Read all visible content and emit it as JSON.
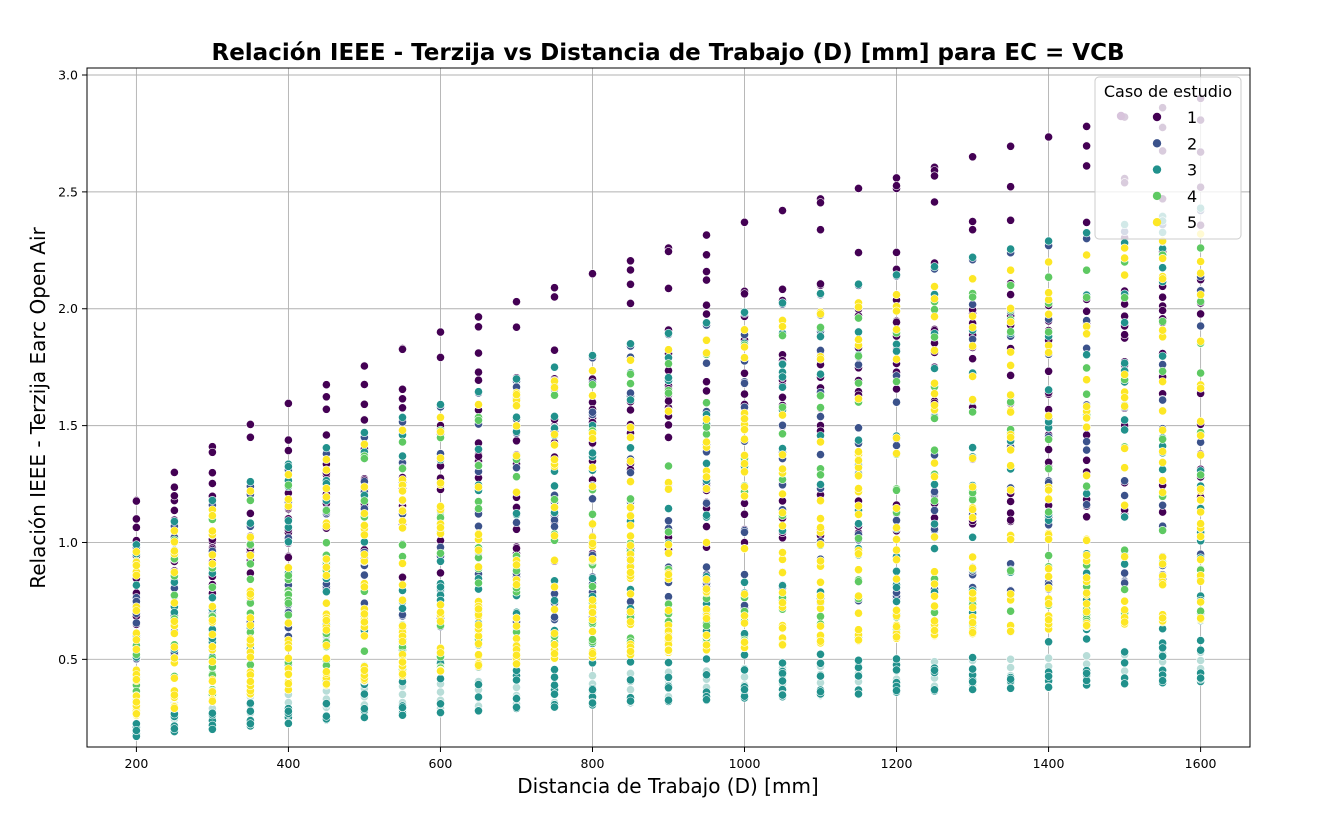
{
  "chart_data": {
    "type": "scatter",
    "title": "Relación IEEE - Terzija vs Distancia de Trabajo (D) [mm] para EC = VCB",
    "xlabel": "Distancia de Trabajo (D) [mm]",
    "ylabel": "Relación IEEE - Terzija Earc Open Air",
    "xlim": [
      135,
      1665
    ],
    "ylim": [
      0.125,
      3.03
    ],
    "x_ticks": [
      200,
      400,
      600,
      800,
      1000,
      1200,
      1400,
      1600
    ],
    "x_tick_labels": [
      "200",
      "400",
      "600",
      "800",
      "1000",
      "1200",
      "1400",
      "1600"
    ],
    "y_ticks": [
      0.5,
      1.0,
      1.5,
      2.0,
      2.5,
      3.0
    ],
    "y_tick_labels": [
      "0.5",
      "1.0",
      "1.5",
      "2.0",
      "2.5",
      "3.0"
    ],
    "grid": true,
    "legend": {
      "title": "Caso de estudio",
      "placement": "top-right",
      "entries": [
        "1",
        "2",
        "3",
        "4",
        "5"
      ]
    },
    "colors": {
      "1": "#440154",
      "2": "#3b528b",
      "3": "#21918c",
      "4": "#5ec962",
      "5": "#fde725",
      "grid": "#b0b0b0",
      "light_cyan": "#b8ddd8",
      "light_purple": "#d8c4dc"
    },
    "x_values": [
      200,
      250,
      300,
      350,
      400,
      450,
      500,
      550,
      600,
      650,
      700,
      750,
      800,
      850,
      900,
      950,
      1000,
      1050,
      1100,
      1150,
      1200,
      1250,
      1300,
      1350,
      1400,
      1450,
      1500,
      1550,
      1600
    ],
    "series": [
      {
        "name": "1",
        "upper_envelope": [
          1.18,
          1.3,
          1.41,
          1.505,
          1.595,
          1.675,
          1.755,
          1.83,
          1.9,
          1.965,
          2.03,
          2.09,
          2.15,
          2.205,
          2.26,
          2.315,
          2.37,
          2.42,
          2.47,
          2.515,
          2.56,
          2.605,
          2.65,
          2.695,
          2.735,
          2.78,
          2.82,
          2.86,
          2.9
        ],
        "lower_envelope": [
          0.65,
          0.69,
          0.72,
          0.74,
          0.78,
          0.8,
          0.82,
          0.85,
          0.87,
          0.89,
          0.9,
          0.92,
          0.94,
          0.96,
          0.97,
          0.98,
          1.0,
          1.02,
          1.03,
          1.04,
          1.05,
          1.07,
          1.08,
          1.09,
          1.1,
          1.11,
          1.12,
          1.13,
          1.14
        ]
      },
      {
        "name": "2",
        "upper_envelope": [
          0.98,
          1.07,
          1.16,
          1.24,
          1.31,
          1.38,
          1.45,
          1.52,
          1.58,
          1.64,
          1.69,
          1.75,
          1.79,
          1.84,
          1.89,
          1.93,
          1.98,
          2.02,
          2.06,
          2.1,
          2.14,
          2.17,
          2.21,
          2.24,
          2.27,
          2.3,
          2.33,
          2.36,
          2.42
        ],
        "lower_envelope": [
          0.5,
          0.52,
          0.54,
          0.56,
          0.58,
          0.6,
          0.62,
          0.63,
          0.64,
          0.65,
          0.66,
          0.67,
          0.68,
          0.69,
          0.7,
          0.71,
          0.72,
          0.73,
          0.74,
          0.75,
          0.76,
          0.77,
          0.78,
          0.79,
          0.8,
          0.81,
          0.82,
          0.83,
          0.84
        ]
      },
      {
        "name": "3",
        "upper_envelope": [
          0.99,
          1.09,
          1.18,
          1.26,
          1.335,
          1.405,
          1.47,
          1.535,
          1.59,
          1.645,
          1.7,
          1.75,
          1.8,
          1.85,
          1.895,
          1.94,
          1.985,
          2.025,
          2.065,
          2.105,
          2.145,
          2.18,
          2.22,
          2.255,
          2.29,
          2.325,
          2.36,
          2.395,
          2.43
        ],
        "lower_envelope": [
          0.17,
          0.19,
          0.2,
          0.215,
          0.225,
          0.24,
          0.25,
          0.26,
          0.27,
          0.28,
          0.29,
          0.295,
          0.305,
          0.315,
          0.32,
          0.325,
          0.335,
          0.34,
          0.345,
          0.35,
          0.36,
          0.365,
          0.37,
          0.375,
          0.38,
          0.39,
          0.395,
          0.4,
          0.405
        ]
      },
      {
        "name": "4",
        "upper_envelope": [
          0.92,
          1.01,
          1.1,
          1.18,
          1.245,
          1.31,
          1.37,
          1.43,
          1.48,
          1.535,
          1.585,
          1.63,
          1.675,
          1.72,
          1.765,
          1.805,
          1.845,
          1.885,
          1.92,
          1.96,
          1.995,
          2.03,
          2.065,
          2.1,
          2.135,
          2.165,
          2.2,
          2.23,
          2.26
        ],
        "lower_envelope": [
          0.3,
          0.33,
          0.35,
          0.37,
          0.39,
          0.41,
          0.43,
          0.45,
          0.46,
          0.48,
          0.49,
          0.5,
          0.52,
          0.53,
          0.54,
          0.55,
          0.56,
          0.57,
          0.58,
          0.59,
          0.6,
          0.61,
          0.62,
          0.63,
          0.64,
          0.65,
          0.66,
          0.67,
          0.68
        ]
      },
      {
        "name": "5",
        "upper_envelope": [
          0.96,
          1.05,
          1.14,
          1.22,
          1.29,
          1.355,
          1.42,
          1.48,
          1.535,
          1.59,
          1.64,
          1.69,
          1.735,
          1.78,
          1.825,
          1.865,
          1.91,
          1.95,
          1.985,
          2.025,
          2.06,
          2.095,
          2.13,
          2.165,
          2.2,
          2.23,
          2.26,
          2.29,
          2.32
        ],
        "lower_envelope": [
          0.26,
          0.29,
          0.32,
          0.35,
          0.37,
          0.39,
          0.41,
          0.43,
          0.45,
          0.47,
          0.48,
          0.5,
          0.51,
          0.52,
          0.53,
          0.54,
          0.55,
          0.56,
          0.57,
          0.58,
          0.59,
          0.6,
          0.61,
          0.62,
          0.63,
          0.64,
          0.65,
          0.66,
          0.67
        ]
      }
    ]
  }
}
